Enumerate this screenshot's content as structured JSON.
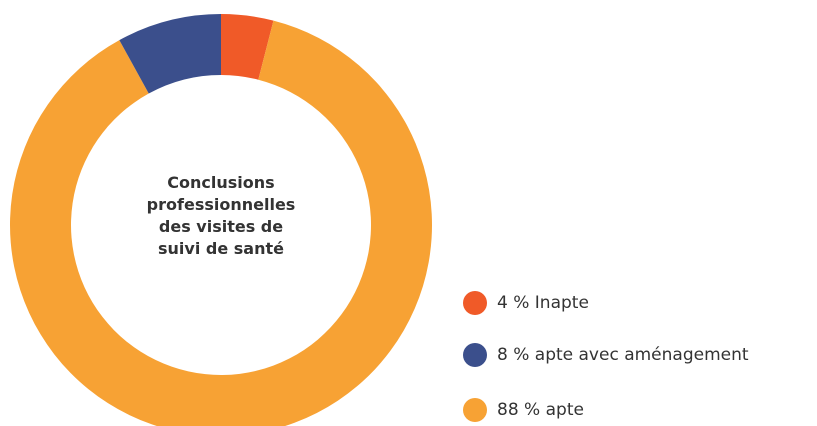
{
  "chart_data": {
    "type": "donut",
    "title": "Conclusions professionnelles des visites de suivi de santé",
    "categories": [
      "Inapte",
      "apte avec aménagement",
      "apte"
    ],
    "values": [
      4,
      8,
      88
    ],
    "value_labels": [
      "4 %",
      "8 %",
      "88 %"
    ],
    "colors": [
      "#f05a28",
      "#3b4f8c",
      "#f7a234"
    ]
  }
}
